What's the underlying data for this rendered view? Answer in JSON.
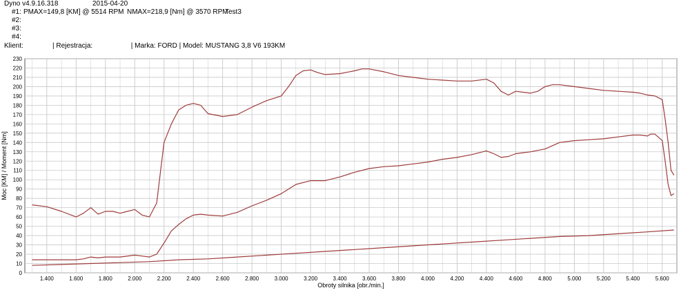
{
  "header": {
    "app": "Dyno v4.9.16.318",
    "date": "2015-04-20",
    "run1_label": "#1:",
    "run1_power": "PMAX=149,8 [KM] @ 5514 RPM",
    "run1_torque": "NMAX=218,9 [Nm] @ 3570 RPM",
    "run1_name": "Test3",
    "run2_label": "#2:",
    "run3_label": "#3:",
    "run4_label": "#4:",
    "client_label": "Klient:",
    "client_line": "| Rejestracja:                    | Marka: FORD | Model: MUSTANG 3,8 V6 193KM"
  },
  "chart_data": {
    "type": "line",
    "xlabel": "Obroty silnika [obr./min.]",
    "ylabel": "Moc [KM] / Moment [Nm]",
    "xlim": [
      1250,
      5700
    ],
    "ylim": [
      0,
      230
    ],
    "x_ticks": [
      "1.400",
      "1.600",
      "1.800",
      "2.000",
      "2.200",
      "2.400",
      "2.600",
      "2.800",
      "3.000",
      "3.200",
      "3.400",
      "3.600",
      "3.800",
      "4.000",
      "4.200",
      "4.400",
      "4.600",
      "4.800",
      "5.000",
      "5.200",
      "5.400",
      "5.600"
    ],
    "y_ticks": [
      "0",
      "10",
      "20",
      "30",
      "40",
      "50",
      "60",
      "70",
      "80",
      "90",
      "100",
      "110",
      "120",
      "130",
      "140",
      "150",
      "160",
      "170",
      "180",
      "190",
      "200",
      "210",
      "220",
      "230"
    ],
    "grid": true,
    "colors": {
      "curve": "#9e3a3a",
      "grid": "#c8c8c8",
      "axis": "#555555"
    },
    "series": [
      {
        "x": [
          1300,
          1400,
          1500,
          1600,
          1650,
          1700,
          1750,
          1800,
          1850,
          1900,
          1950,
          2000,
          2050,
          2100,
          2150,
          2200,
          2250,
          2300,
          2350,
          2400,
          2450,
          2500,
          2600,
          2700,
          2800,
          2900,
          3000,
          3050,
          3100,
          3150,
          3200,
          3250,
          3300,
          3400,
          3500,
          3550,
          3570,
          3600,
          3700,
          3800,
          3900,
          4000,
          4100,
          4200,
          4300,
          4400,
          4450,
          4500,
          4550,
          4600,
          4650,
          4700,
          4750,
          4800,
          4850,
          4900,
          5000,
          5100,
          5200,
          5300,
          5400,
          5450,
          5500,
          5550,
          5600,
          5620,
          5640,
          5660,
          5680
        ],
        "values": [
          73,
          71,
          66,
          60,
          64,
          70,
          63,
          66,
          66,
          64,
          66,
          68,
          62,
          60,
          75,
          140,
          160,
          175,
          180,
          182,
          180,
          171,
          168,
          170,
          178,
          185,
          190,
          200,
          212,
          217,
          218,
          215,
          213,
          214,
          217,
          219,
          219,
          219,
          216,
          212,
          210,
          208,
          207,
          206,
          206,
          208,
          204,
          195,
          191,
          195,
          194,
          193,
          195,
          200,
          202,
          202,
          200,
          198,
          196,
          195,
          194,
          193,
          191,
          190,
          186,
          165,
          140,
          110,
          105
        ]
      },
      {
        "x": [
          1300,
          1400,
          1500,
          1600,
          1650,
          1700,
          1750,
          1800,
          1900,
          2000,
          2050,
          2100,
          2150,
          2200,
          2250,
          2300,
          2350,
          2400,
          2450,
          2500,
          2600,
          2700,
          2800,
          2900,
          3000,
          3100,
          3200,
          3300,
          3400,
          3500,
          3600,
          3700,
          3800,
          3900,
          4000,
          4100,
          4200,
          4300,
          4400,
          4450,
          4500,
          4550,
          4600,
          4650,
          4700,
          4800,
          4900,
          5000,
          5100,
          5200,
          5300,
          5400,
          5450,
          5500,
          5520,
          5550,
          5600,
          5620,
          5640,
          5660,
          5680
        ],
        "values": [
          14,
          14,
          14,
          14,
          15,
          17,
          16,
          17,
          17,
          19,
          18,
          17,
          20,
          32,
          45,
          52,
          58,
          62,
          63,
          62,
          61,
          65,
          72,
          78,
          85,
          95,
          99,
          99,
          103,
          108,
          112,
          114,
          115,
          117,
          119,
          122,
          124,
          127,
          131,
          128,
          124,
          125,
          128,
          129,
          130,
          133,
          140,
          142,
          143,
          144,
          146,
          148,
          148,
          147,
          149,
          149,
          142,
          120,
          95,
          83,
          85
        ]
      },
      {
        "x": [
          1300,
          1500,
          1700,
          1900,
          2100,
          2300,
          2500,
          2700,
          2900,
          3100,
          3300,
          3500,
          3700,
          3900,
          4100,
          4300,
          4500,
          4700,
          4900,
          5100,
          5300,
          5500,
          5680
        ],
        "values": [
          8,
          9,
          10,
          11,
          12,
          14,
          15,
          17,
          19,
          21,
          23,
          25,
          27,
          29,
          31,
          33,
          35,
          37,
          39,
          40,
          42,
          44,
          46
        ]
      }
    ]
  }
}
